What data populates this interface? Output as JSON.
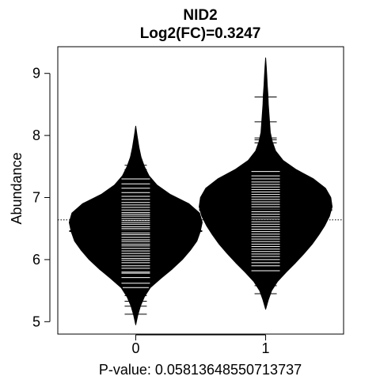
{
  "chart_data": {
    "type": "beanplot",
    "title": "NID2",
    "subtitle": "Log2(FC)=0.3247",
    "xlabel": "P-value: 0.0581364855071373​7",
    "ylabel": "Abundance",
    "categories": [
      "0",
      "1"
    ],
    "yticks": [
      5,
      6,
      7,
      8,
      9
    ],
    "ylim": [
      4.8,
      9.43
    ],
    "xlim": [
      -0.6,
      1.6
    ],
    "overall_mean_line": 6.64,
    "groups": [
      {
        "category": "0",
        "mean": 6.46,
        "min": 4.95,
        "max": 8.15,
        "density": [
          [
            4.95,
            0.0
          ],
          [
            5.1,
            0.03
          ],
          [
            5.25,
            0.07
          ],
          [
            5.4,
            0.13
          ],
          [
            5.55,
            0.22
          ],
          [
            5.7,
            0.38
          ],
          [
            5.85,
            0.55
          ],
          [
            6.0,
            0.7
          ],
          [
            6.15,
            0.82
          ],
          [
            6.3,
            0.92
          ],
          [
            6.45,
            0.97
          ],
          [
            6.6,
            1.0
          ],
          [
            6.75,
            0.96
          ],
          [
            6.9,
            0.8
          ],
          [
            7.05,
            0.52
          ],
          [
            7.2,
            0.32
          ],
          [
            7.35,
            0.2
          ],
          [
            7.5,
            0.13
          ],
          [
            7.65,
            0.08
          ],
          [
            7.8,
            0.05
          ],
          [
            8.0,
            0.02
          ],
          [
            8.15,
            0.0
          ]
        ],
        "observations": [
          5.12,
          5.25,
          5.33,
          5.42,
          5.55,
          5.62,
          5.71,
          5.78,
          5.8,
          5.86,
          5.9,
          5.95,
          5.99,
          6.02,
          6.06,
          6.1,
          6.14,
          6.18,
          6.22,
          6.25,
          6.29,
          6.32,
          6.36,
          6.4,
          6.43,
          6.47,
          6.5,
          6.53,
          6.57,
          6.6,
          6.63,
          6.66,
          6.7,
          6.73,
          6.76,
          6.8,
          6.84,
          6.88,
          6.92,
          6.97,
          7.02,
          7.08,
          7.15,
          7.22,
          7.3,
          7.38,
          7.45,
          7.52
        ]
      },
      {
        "category": "1",
        "mean": 6.8,
        "min": 5.2,
        "max": 9.25,
        "density": [
          [
            5.2,
            0.0
          ],
          [
            5.35,
            0.04
          ],
          [
            5.5,
            0.09
          ],
          [
            5.65,
            0.18
          ],
          [
            5.8,
            0.31
          ],
          [
            5.95,
            0.45
          ],
          [
            6.1,
            0.58
          ],
          [
            6.25,
            0.7
          ],
          [
            6.4,
            0.8
          ],
          [
            6.55,
            0.89
          ],
          [
            6.7,
            0.96
          ],
          [
            6.85,
            1.0
          ],
          [
            7.0,
            0.98
          ],
          [
            7.15,
            0.9
          ],
          [
            7.3,
            0.72
          ],
          [
            7.45,
            0.46
          ],
          [
            7.6,
            0.26
          ],
          [
            7.75,
            0.15
          ],
          [
            7.9,
            0.1
          ],
          [
            8.05,
            0.07
          ],
          [
            8.2,
            0.06
          ],
          [
            8.35,
            0.05
          ],
          [
            8.5,
            0.04
          ],
          [
            8.65,
            0.035
          ],
          [
            8.8,
            0.025
          ],
          [
            8.95,
            0.018
          ],
          [
            9.1,
            0.01
          ],
          [
            9.25,
            0.0
          ]
        ],
        "observations": [
          5.45,
          5.58,
          5.82,
          5.9,
          5.95,
          6.0,
          6.05,
          6.09,
          6.13,
          6.17,
          6.21,
          6.25,
          6.29,
          6.33,
          6.37,
          6.41,
          6.45,
          6.49,
          6.53,
          6.57,
          6.61,
          6.65,
          6.69,
          6.73,
          6.77,
          6.81,
          6.85,
          6.89,
          6.93,
          6.97,
          7.01,
          7.05,
          7.09,
          7.13,
          7.17,
          7.21,
          7.25,
          7.3,
          7.35,
          7.42,
          7.88,
          7.93,
          7.96,
          8.22,
          8.62
        ]
      }
    ]
  }
}
